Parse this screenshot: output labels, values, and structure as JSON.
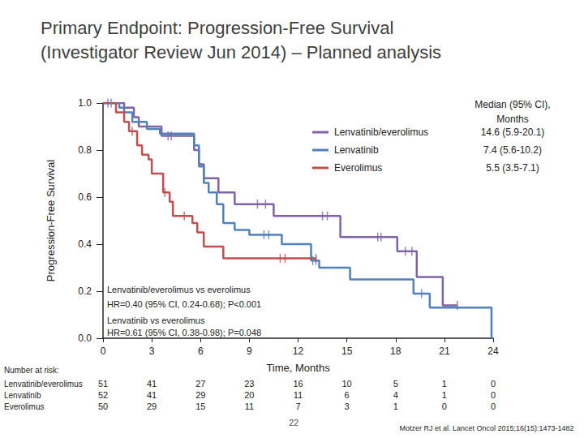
{
  "chart_data": {
    "type": "line",
    "title": "Primary Endpoint: Progression-Free Survival\n(Investigator Review Jun 2014) – Planned analysis",
    "x_label": "Time, Months",
    "y_label": "Progression-Free Survival",
    "xlim": [
      0,
      24
    ],
    "xticks": [
      0,
      3,
      6,
      9,
      12,
      15,
      18,
      21,
      24
    ],
    "ylim": [
      0,
      1
    ],
    "yticks": [
      {
        "value": 0,
        "label": "0.0"
      },
      {
        "value": 0.2,
        "label": "0.2"
      },
      {
        "value": 0.4,
        "label": "0.4"
      },
      {
        "value": 0.6,
        "label": "0.6"
      },
      {
        "value": 0.8,
        "label": "0.8"
      },
      {
        "value": 1,
        "label": "1.0"
      }
    ],
    "grid": false,
    "median_header": "Median (95% CI),\nMonths",
    "at_risk_label": "Number at risk:",
    "annotations": [
      "Lenvatinib/everolimus vs everolimus",
      "HR=0.40 (95% CI, 0.24-0.68); P<0.001",
      "Lenvatinib vs everolimus",
      "HR=0.61 (95% CI, 0.38-0.98); P=0.048"
    ],
    "slide_number": "22",
    "source": "Motzer RJ et al. Lancet Oncol 2015;16(15):1473-1482",
    "series": [
      {
        "name": "Lenvatinib/everolimus",
        "color": "#7f63a8",
        "median": "14.6 (5.9-20.1)",
        "x": [
          0,
          1.3,
          1.9,
          2.2,
          3.6,
          5.6,
          5.9,
          6.2,
          7.1,
          8.1,
          10.5,
          14.6,
          18.1,
          19.3,
          20.9,
          21.8
        ],
        "values": [
          1.0,
          0.98,
          0.94,
          0.9,
          0.86,
          0.8,
          0.74,
          0.68,
          0.62,
          0.57,
          0.52,
          0.43,
          0.37,
          0.26,
          0.14,
          0.14
        ],
        "censor_x": [
          0.3,
          4.0,
          4.2,
          9.5,
          10.0,
          13.5,
          13.8,
          16.9,
          17.1,
          18.6,
          19.0,
          21.8
        ],
        "censor_y": [
          1.0,
          0.86,
          0.86,
          0.57,
          0.57,
          0.52,
          0.52,
          0.43,
          0.43,
          0.37,
          0.37,
          0.14
        ],
        "at_risk": [
          51,
          41,
          27,
          23,
          16,
          10,
          5,
          1,
          0
        ]
      },
      {
        "name": "Lenvatinib",
        "color": "#4f81bd",
        "median": "7.4 (5.6-10.2)",
        "x": [
          0,
          1.0,
          1.3,
          1.8,
          2.7,
          3.5,
          5.6,
          5.9,
          6.2,
          6.5,
          7.0,
          7.4,
          8.1,
          9.0,
          11.0,
          12.8,
          13.3,
          15.2,
          19.1,
          20.1,
          23.9
        ],
        "values": [
          1.0,
          0.98,
          0.96,
          0.92,
          0.89,
          0.87,
          0.82,
          0.73,
          0.66,
          0.62,
          0.57,
          0.49,
          0.46,
          0.44,
          0.4,
          0.33,
          0.3,
          0.25,
          0.19,
          0.13,
          0.0
        ],
        "censor_x": [
          0.5,
          9.9,
          10.2,
          12.9,
          13.1,
          19.6
        ],
        "censor_y": [
          1.0,
          0.44,
          0.44,
          0.33,
          0.33,
          0.19
        ],
        "at_risk": [
          52,
          41,
          29,
          20,
          11,
          6,
          4,
          1,
          0
        ]
      },
      {
        "name": "Everolimus",
        "color": "#c0504d",
        "median": "5.5 (3.5-7.1)",
        "x": [
          0,
          0.8,
          1.3,
          1.6,
          2.1,
          2.4,
          2.8,
          3.0,
          3.7,
          4.1,
          4.3,
          5.5,
          5.8,
          6.2,
          7.4,
          13.1
        ],
        "values": [
          1.0,
          0.96,
          0.92,
          0.88,
          0.82,
          0.78,
          0.76,
          0.7,
          0.62,
          0.58,
          0.52,
          0.49,
          0.45,
          0.39,
          0.34,
          0.34
        ],
        "censor_x": [
          1.8,
          3.8,
          5.0,
          10.9,
          11.2,
          13.1
        ],
        "censor_y": [
          0.88,
          0.62,
          0.52,
          0.34,
          0.34,
          0.34
        ],
        "at_risk": [
          50,
          29,
          15,
          11,
          7,
          3,
          1,
          0,
          0
        ]
      }
    ]
  }
}
